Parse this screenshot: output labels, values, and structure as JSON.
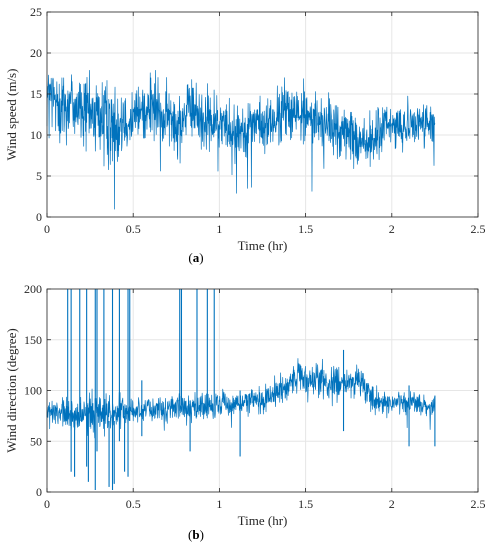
{
  "chart_data": [
    {
      "type": "line",
      "panel_label": [
        "(",
        "a",
        ")"
      ],
      "xlabel": "Time (hr)",
      "ylabel": "Wind speed (m/s)",
      "xlim": [
        0,
        2.5
      ],
      "ylim": [
        0,
        25
      ],
      "xticks": [
        "0",
        "0.5",
        "1",
        "1.5",
        "2",
        "2.5"
      ],
      "yticks": [
        "0",
        "5",
        "10",
        "15",
        "20",
        "25"
      ],
      "grid": true,
      "color": "#0072BD",
      "series": [
        {
          "x": [
            0,
            0.05,
            0.1,
            0.15,
            0.2,
            0.25,
            0.3,
            0.35,
            0.4,
            0.45,
            0.5,
            0.55,
            0.6,
            0.65,
            0.7,
            0.75,
            0.8,
            0.85,
            0.9,
            0.95,
            1.0,
            1.05,
            1.1,
            1.15,
            1.2,
            1.25,
            1.3,
            1.35,
            1.4,
            1.45,
            1.5,
            1.55,
            1.6,
            1.65,
            1.7,
            1.75,
            1.8,
            1.85,
            1.9,
            1.95,
            2.0,
            2.05,
            2.1,
            2.15,
            2.2,
            2.25
          ],
          "y": [
            15,
            14,
            13.5,
            14,
            13,
            12.5,
            12.5,
            11,
            11.5,
            12.5,
            12,
            13,
            13.5,
            12.5,
            12,
            11.5,
            12.5,
            13,
            12,
            11.5,
            11.5,
            11,
            10.5,
            11,
            11.5,
            11,
            11.5,
            12,
            13.5,
            12.5,
            12.5,
            12,
            11.5,
            11,
            10.5,
            10,
            9.5,
            9,
            9.5,
            11,
            11,
            11,
            11.5,
            11.5,
            11.5,
            10.5
          ],
          "band": [
            4,
            4,
            4.5,
            4,
            4.5,
            4,
            4.5,
            5,
            4.5,
            4,
            3.5,
            3.5,
            3.5,
            3.5,
            3.5,
            3.5,
            3.5,
            3.5,
            3.5,
            3.5,
            3,
            3,
            3,
            3,
            3,
            3,
            3,
            3.5,
            3.5,
            3.5,
            3.5,
            3,
            3,
            3,
            3,
            3,
            3,
            3,
            3,
            3,
            2.5,
            2.5,
            2.5,
            2.5,
            2.5,
            2.5
          ]
        }
      ]
    },
    {
      "type": "line",
      "panel_label": [
        "(",
        "b",
        ")"
      ],
      "xlabel": "Time (hr)",
      "ylabel": "Wind direction (degree)",
      "xlim": [
        0,
        2.5
      ],
      "ylim": [
        0,
        200
      ],
      "xticks": [
        "0",
        "0.5",
        "1",
        "1.5",
        "2",
        "2.5"
      ],
      "yticks": [
        "0",
        "50",
        "100",
        "150",
        "200"
      ],
      "grid": true,
      "color": "#0072BD",
      "series": [
        {
          "x": [
            0,
            0.05,
            0.1,
            0.15,
            0.2,
            0.25,
            0.3,
            0.35,
            0.4,
            0.45,
            0.5,
            0.55,
            0.6,
            0.65,
            0.7,
            0.75,
            0.8,
            0.85,
            0.9,
            0.95,
            1.0,
            1.05,
            1.1,
            1.15,
            1.2,
            1.25,
            1.3,
            1.35,
            1.4,
            1.45,
            1.5,
            1.55,
            1.6,
            1.65,
            1.7,
            1.75,
            1.8,
            1.85,
            1.9,
            1.95,
            2.0,
            2.05,
            2.1,
            2.15,
            2.2,
            2.25
          ],
          "y": [
            78,
            77,
            76,
            75,
            76,
            77,
            77,
            78,
            78,
            79,
            80,
            81,
            81,
            82,
            83,
            84,
            84,
            84,
            85,
            85,
            86,
            87,
            88,
            88,
            90,
            92,
            95,
            100,
            105,
            110,
            113,
            112,
            110,
            108,
            107,
            110,
            112,
            100,
            92,
            88,
            86,
            88,
            88,
            87,
            85,
            82
          ],
          "band": [
            12,
            14,
            16,
            15,
            16,
            18,
            18,
            16,
            15,
            14,
            12,
            11,
            11,
            11,
            11,
            11,
            11,
            11,
            11,
            11,
            11,
            11,
            11,
            11,
            12,
            12,
            13,
            14,
            15,
            16,
            17,
            17,
            16,
            16,
            15,
            15,
            15,
            13,
            11,
            10,
            10,
            10,
            10,
            10,
            9,
            9
          ]
        }
      ],
      "spikes": [
        {
          "x": 0.12,
          "y": [
            75,
            200
          ]
        },
        {
          "x": 0.14,
          "y": [
            20,
            200
          ]
        },
        {
          "x": 0.19,
          "y": [
            70,
            200
          ]
        },
        {
          "x": 0.23,
          "y": [
            25,
            200
          ]
        },
        {
          "x": 0.28,
          "y": [
            2,
            200
          ]
        },
        {
          "x": 0.29,
          "y": [
            40,
            200
          ]
        },
        {
          "x": 0.33,
          "y": [
            70,
            200
          ]
        },
        {
          "x": 0.38,
          "y": [
            2,
            200
          ]
        },
        {
          "x": 0.42,
          "y": [
            50,
            200
          ]
        },
        {
          "x": 0.47,
          "y": [
            15,
            200
          ]
        },
        {
          "x": 0.48,
          "y": [
            70,
            200
          ]
        },
        {
          "x": 0.77,
          "y": [
            80,
            200
          ]
        },
        {
          "x": 0.78,
          "y": [
            85,
            200
          ]
        },
        {
          "x": 0.87,
          "y": [
            80,
            200
          ]
        },
        {
          "x": 0.93,
          "y": [
            80,
            200
          ]
        },
        {
          "x": 0.97,
          "y": [
            85,
            200
          ]
        },
        {
          "x": 0.16,
          "y": [
            15,
            80
          ]
        },
        {
          "x": 0.24,
          "y": [
            10,
            80
          ]
        },
        {
          "x": 0.36,
          "y": [
            5,
            70
          ]
        },
        {
          "x": 0.39,
          "y": [
            8,
            70
          ]
        },
        {
          "x": 0.45,
          "y": [
            20,
            75
          ]
        },
        {
          "x": 0.55,
          "y": [
            55,
            110
          ]
        },
        {
          "x": 0.83,
          "y": [
            40,
            90
          ]
        },
        {
          "x": 1.12,
          "y": [
            35,
            100
          ]
        },
        {
          "x": 1.72,
          "y": [
            60,
            140
          ]
        },
        {
          "x": 2.1,
          "y": [
            45,
            105
          ]
        },
        {
          "x": 2.25,
          "y": [
            45,
            95
          ]
        }
      ]
    }
  ]
}
